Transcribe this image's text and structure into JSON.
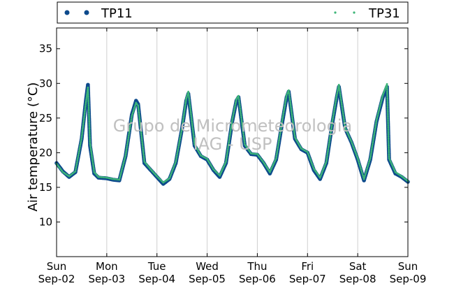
{
  "chart_data": {
    "type": "scatter",
    "title": "",
    "xlabel": "",
    "ylabel": "Air temperature (°C)",
    "ylim": [
      5,
      38
    ],
    "yticks": [
      10,
      15,
      20,
      25,
      30,
      35
    ],
    "xlim": [
      "2024-09-02 00:00",
      "2024-09-09 00:00"
    ],
    "xticks": [
      {
        "day": "Sun",
        "date": "Sep-02"
      },
      {
        "day": "Mon",
        "date": "Sep-03"
      },
      {
        "day": "Tue",
        "date": "Sep-04"
      },
      {
        "day": "Wed",
        "date": "Sep-05"
      },
      {
        "day": "Thu",
        "date": "Sep-06"
      },
      {
        "day": "Fri",
        "date": "Sep-07"
      },
      {
        "day": "Sat",
        "date": "Sep-08"
      },
      {
        "day": "Sun",
        "date": "Sep-09"
      }
    ],
    "grid": "vertical",
    "legend_position": "top",
    "watermark": [
      "Grupo de Micrometeorologia",
      "IAG - USP"
    ],
    "series": [
      {
        "name": "TP11",
        "color": "#0d4a8c",
        "marker": "large-dot",
        "x": [
          "Sep-02 00:00",
          "Sep-02 03:00",
          "Sep-02 06:00",
          "Sep-02 09:00",
          "Sep-02 12:00",
          "Sep-02 14:00",
          "Sep-02 15:00",
          "Sep-02 16:00",
          "Sep-02 18:00",
          "Sep-02 20:00",
          "Sep-03 00:00",
          "Sep-03 03:00",
          "Sep-03 06:00",
          "Sep-03 09:00",
          "Sep-03 12:00",
          "Sep-03 14:00",
          "Sep-03 15:00",
          "Sep-03 18:00",
          "Sep-03 21:00",
          "Sep-04 00:00",
          "Sep-04 03:00",
          "Sep-04 06:00",
          "Sep-04 09:00",
          "Sep-04 12:00",
          "Sep-04 14:00",
          "Sep-04 15:00",
          "Sep-04 18:00",
          "Sep-04 21:00",
          "Sep-05 00:00",
          "Sep-05 03:00",
          "Sep-05 06:00",
          "Sep-05 09:00",
          "Sep-05 12:00",
          "Sep-05 14:00",
          "Sep-05 15:00",
          "Sep-05 18:00",
          "Sep-05 21:00",
          "Sep-06 00:00",
          "Sep-06 03:00",
          "Sep-06 06:00",
          "Sep-06 09:00",
          "Sep-06 12:00",
          "Sep-06 14:00",
          "Sep-06 15:00",
          "Sep-06 18:00",
          "Sep-06 21:00",
          "Sep-07 00:00",
          "Sep-07 03:00",
          "Sep-07 06:00",
          "Sep-07 09:00",
          "Sep-07 12:00",
          "Sep-07 14:00",
          "Sep-07 15:00",
          "Sep-07 18:00",
          "Sep-07 21:00",
          "Sep-08 00:00",
          "Sep-08 03:00",
          "Sep-08 06:00",
          "Sep-08 09:00",
          "Sep-08 12:00",
          "Sep-08 14:00",
          "Sep-08 15:00",
          "Sep-08 18:00",
          "Sep-08 21:00",
          "Sep-09 00:00"
        ],
        "y": [
          18.5,
          17.3,
          16.5,
          17.2,
          22.0,
          27.5,
          29.8,
          21.0,
          17.0,
          16.4,
          16.3,
          16.1,
          16.0,
          19.5,
          25.5,
          27.5,
          27.0,
          18.5,
          17.5,
          16.5,
          15.5,
          16.2,
          18.5,
          23.5,
          27.5,
          28.5,
          21.0,
          19.5,
          19.0,
          17.5,
          16.5,
          18.5,
          24.5,
          27.5,
          28.0,
          21.0,
          19.8,
          19.7,
          18.5,
          17.0,
          19.0,
          24.5,
          28.0,
          28.8,
          22.0,
          20.5,
          20.0,
          17.5,
          16.2,
          18.5,
          24.5,
          28.0,
          29.5,
          23.5,
          21.5,
          19.0,
          16.0,
          19.0,
          24.5,
          28.0,
          29.5,
          19.0,
          17.0,
          16.5,
          15.8
        ]
      },
      {
        "name": "TP31",
        "color": "#3db578",
        "marker": "small-dot",
        "x": [
          "Sep-02 00:00",
          "Sep-02 03:00",
          "Sep-02 06:00",
          "Sep-02 09:00",
          "Sep-02 12:00",
          "Sep-02 14:00",
          "Sep-02 15:00",
          "Sep-02 16:00",
          "Sep-02 18:00",
          "Sep-02 20:00",
          "Sep-03 00:00",
          "Sep-03 03:00",
          "Sep-03 06:00",
          "Sep-03 09:00",
          "Sep-03 12:00",
          "Sep-03 14:00",
          "Sep-03 15:00",
          "Sep-03 18:00",
          "Sep-03 21:00",
          "Sep-04 00:00",
          "Sep-04 03:00",
          "Sep-04 06:00",
          "Sep-04 09:00",
          "Sep-04 12:00",
          "Sep-04 14:00",
          "Sep-04 15:00",
          "Sep-04 18:00",
          "Sep-04 21:00",
          "Sep-05 00:00",
          "Sep-05 03:00",
          "Sep-05 06:00",
          "Sep-05 09:00",
          "Sep-05 12:00",
          "Sep-05 14:00",
          "Sep-05 15:00",
          "Sep-05 18:00",
          "Sep-05 21:00",
          "Sep-06 00:00",
          "Sep-06 03:00",
          "Sep-06 06:00",
          "Sep-06 09:00",
          "Sep-06 12:00",
          "Sep-06 14:00",
          "Sep-06 15:00",
          "Sep-06 18:00",
          "Sep-06 21:00",
          "Sep-07 00:00",
          "Sep-07 03:00",
          "Sep-07 06:00",
          "Sep-07 09:00",
          "Sep-07 12:00",
          "Sep-07 14:00",
          "Sep-07 15:00",
          "Sep-07 18:00",
          "Sep-07 21:00",
          "Sep-08 00:00",
          "Sep-08 03:00",
          "Sep-08 06:00",
          "Sep-08 09:00",
          "Sep-08 12:00",
          "Sep-08 14:00",
          "Sep-08 15:00",
          "Sep-08 18:00",
          "Sep-08 21:00",
          "Sep-09 00:00"
        ],
        "y": [
          18.4,
          17.2,
          16.6,
          17.3,
          22.2,
          27.2,
          29.4,
          21.4,
          17.2,
          16.5,
          16.4,
          16.2,
          16.1,
          19.6,
          25.3,
          27.2,
          26.8,
          18.7,
          17.6,
          16.6,
          15.7,
          16.3,
          18.7,
          23.6,
          27.8,
          28.8,
          21.2,
          19.6,
          19.1,
          17.6,
          16.7,
          18.7,
          24.7,
          27.7,
          28.2,
          21.2,
          19.9,
          19.8,
          18.6,
          17.2,
          19.2,
          24.8,
          28.3,
          29.0,
          22.2,
          20.6,
          20.1,
          17.7,
          16.4,
          18.7,
          24.7,
          28.3,
          29.8,
          23.6,
          21.6,
          19.2,
          16.2,
          19.2,
          24.7,
          28.3,
          29.9,
          19.2,
          17.2,
          16.6,
          15.9
        ]
      }
    ]
  }
}
